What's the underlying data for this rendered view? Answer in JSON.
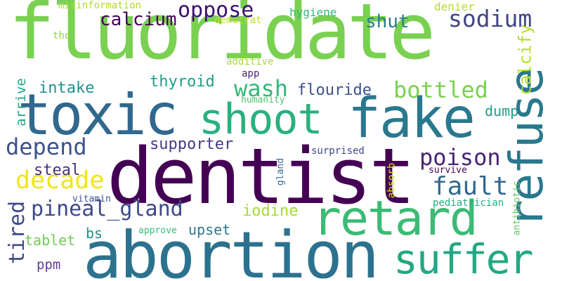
{
  "colors": {
    "background": "#ffffff",
    "palette": [
      "#440154",
      "#3b528b",
      "#21918c",
      "#5ec962",
      "#fde725"
    ]
  },
  "words": [
    {
      "text": "fluoridate",
      "color": "#7ad151"
    },
    {
      "text": "dentist",
      "color": "#440154"
    },
    {
      "text": "abortion",
      "color": "#2c728e"
    },
    {
      "text": "toxic",
      "color": "#31688e"
    },
    {
      "text": "fake",
      "color": "#2a788e"
    },
    {
      "text": "refuse",
      "color": "#2a788e"
    },
    {
      "text": "retard",
      "color": "#3bbb75"
    },
    {
      "text": "suffer",
      "color": "#22a884"
    },
    {
      "text": "shoot",
      "color": "#2ab07f"
    },
    {
      "text": "oppose",
      "color": "#3b0f70"
    },
    {
      "text": "depend",
      "color": "#3b528b"
    },
    {
      "text": "pineal_gland",
      "color": "#3e4989"
    },
    {
      "text": "decade",
      "color": "#f0e51a"
    },
    {
      "text": "poison",
      "color": "#482475"
    },
    {
      "text": "fault",
      "color": "#31688e"
    },
    {
      "text": "sodium",
      "color": "#414487"
    },
    {
      "text": "calcium",
      "color": "#440154"
    },
    {
      "text": "bottled",
      "color": "#7ad151"
    },
    {
      "text": "wash",
      "color": "#35b779"
    },
    {
      "text": "intake",
      "color": "#21918c"
    },
    {
      "text": "thyroid",
      "color": "#1f9e89"
    },
    {
      "text": "flouride",
      "color": "#3b528b"
    },
    {
      "text": "shut",
      "color": "#287d8e"
    },
    {
      "text": "supporter",
      "color": "#443a83"
    },
    {
      "text": "tired",
      "color": "#3e4989"
    },
    {
      "text": "calcify",
      "color": "#b5de2b"
    },
    {
      "text": "arrive",
      "color": "#22a884"
    },
    {
      "text": "dump",
      "color": "#1f9e89"
    },
    {
      "text": "steal",
      "color": "#46327e"
    },
    {
      "text": "iodine",
      "color": "#a5db36"
    },
    {
      "text": "upset",
      "color": "#2a788e"
    },
    {
      "text": "tablet",
      "color": "#6ece58"
    },
    {
      "text": "bs",
      "color": "#21918c"
    },
    {
      "text": "ppm",
      "color": "#5e3c99"
    },
    {
      "text": "hygiene",
      "color": "#35b779"
    },
    {
      "text": "misinformation",
      "color": "#addc30"
    },
    {
      "text": "denier",
      "color": "#b5de2b"
    },
    {
      "text": "democrat",
      "color": "#c2df23"
    },
    {
      "text": "tho",
      "color": "#8fd744"
    },
    {
      "text": "additive",
      "color": "#addc30"
    },
    {
      "text": "app",
      "color": "#482475"
    },
    {
      "text": "humanity",
      "color": "#52c569"
    },
    {
      "text": "surprised",
      "color": "#3e4989"
    },
    {
      "text": "survive",
      "color": "#440154"
    },
    {
      "text": "vitamin",
      "color": "#3b528b"
    },
    {
      "text": "gland",
      "color": "#31688e"
    },
    {
      "text": "absorb",
      "color": "#dde318"
    },
    {
      "text": "antibiotic",
      "color": "#5ec962"
    },
    {
      "text": "pediatrician",
      "color": "#26ad81"
    },
    {
      "text": "approve",
      "color": "#3bbb75"
    }
  ]
}
